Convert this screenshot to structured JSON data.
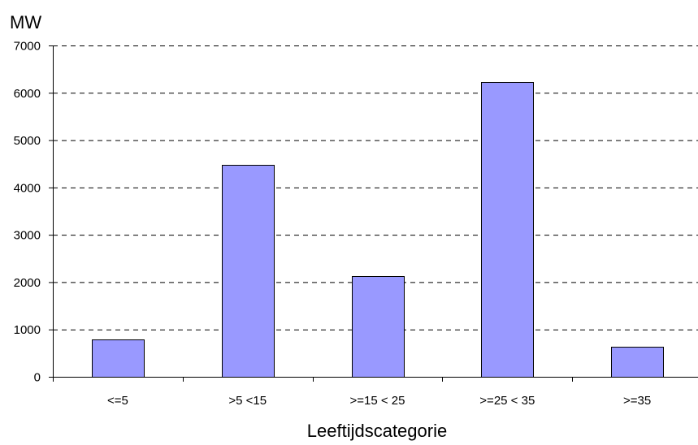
{
  "chart_data": {
    "type": "bar",
    "title": "",
    "xlabel": "Leeftijdscategorie",
    "ylabel": "MW",
    "categories": [
      "<=5",
      ">5 <15",
      ">=15 < 25",
      ">=25 < 35",
      ">=35"
    ],
    "values": [
      790,
      4470,
      2130,
      6230,
      630
    ],
    "ylim": [
      0,
      7000
    ],
    "yticks": [
      0,
      1000,
      2000,
      3000,
      4000,
      5000,
      6000,
      7000
    ],
    "grid": true,
    "grid_style": "dashed",
    "legend": "none",
    "bar_color": "#9999ff"
  }
}
